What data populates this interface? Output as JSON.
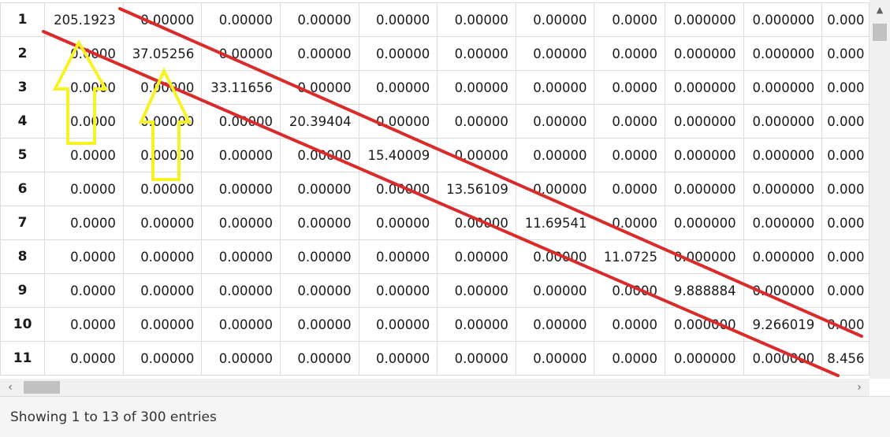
{
  "grid": {
    "rows": [
      {
        "label": "1",
        "cells": [
          "205.1923",
          "0.00000",
          "0.00000",
          "0.00000",
          "0.00000",
          "0.00000",
          "0.00000",
          "0.0000",
          "0.000000",
          "0.000000",
          "0.000"
        ]
      },
      {
        "label": "2",
        "cells": [
          "0.0000",
          "37.05256",
          "0.00000",
          "0.00000",
          "0.00000",
          "0.00000",
          "0.00000",
          "0.0000",
          "0.000000",
          "0.000000",
          "0.000"
        ]
      },
      {
        "label": "3",
        "cells": [
          "0.0000",
          "0.00000",
          "33.11656",
          "0.00000",
          "0.00000",
          "0.00000",
          "0.00000",
          "0.0000",
          "0.000000",
          "0.000000",
          "0.000"
        ]
      },
      {
        "label": "4",
        "cells": [
          "0.0000",
          "0.00000",
          "0.00000",
          "20.39404",
          "0.00000",
          "0.00000",
          "0.00000",
          "0.0000",
          "0.000000",
          "0.000000",
          "0.000"
        ]
      },
      {
        "label": "5",
        "cells": [
          "0.0000",
          "0.00000",
          "0.00000",
          "0.00000",
          "15.40009",
          "0.00000",
          "0.00000",
          "0.0000",
          "0.000000",
          "0.000000",
          "0.000"
        ]
      },
      {
        "label": "6",
        "cells": [
          "0.0000",
          "0.00000",
          "0.00000",
          "0.00000",
          "0.00000",
          "13.56109",
          "0.00000",
          "0.0000",
          "0.000000",
          "0.000000",
          "0.000"
        ]
      },
      {
        "label": "7",
        "cells": [
          "0.0000",
          "0.00000",
          "0.00000",
          "0.00000",
          "0.00000",
          "0.00000",
          "11.69541",
          "0.0000",
          "0.000000",
          "0.000000",
          "0.000"
        ]
      },
      {
        "label": "8",
        "cells": [
          "0.0000",
          "0.00000",
          "0.00000",
          "0.00000",
          "0.00000",
          "0.00000",
          "0.00000",
          "11.0725",
          "0.000000",
          "0.000000",
          "0.000"
        ]
      },
      {
        "label": "9",
        "cells": [
          "0.0000",
          "0.00000",
          "0.00000",
          "0.00000",
          "0.00000",
          "0.00000",
          "0.00000",
          "0.0000",
          "9.888884",
          "0.000000",
          "0.000"
        ]
      },
      {
        "label": "10",
        "cells": [
          "0.0000",
          "0.00000",
          "0.00000",
          "0.00000",
          "0.00000",
          "0.00000",
          "0.00000",
          "0.0000",
          "0.000000",
          "9.266019",
          "0.000"
        ]
      },
      {
        "label": "11",
        "cells": [
          "0.0000",
          "0.00000",
          "0.00000",
          "0.00000",
          "0.00000",
          "0.00000",
          "0.00000",
          "0.0000",
          "0.000000",
          "0.000000",
          "8.456"
        ]
      }
    ]
  },
  "scrollbars": {
    "up_icon": "triangle-up-icon",
    "left_icon": "chevron-left-icon",
    "right_icon": "chevron-right-icon"
  },
  "footer": {
    "info": "Showing 1 to 13 of 300 entries"
  },
  "annotations": {
    "line_color": "#d92b2b",
    "arrow_color": "#f7f224"
  }
}
